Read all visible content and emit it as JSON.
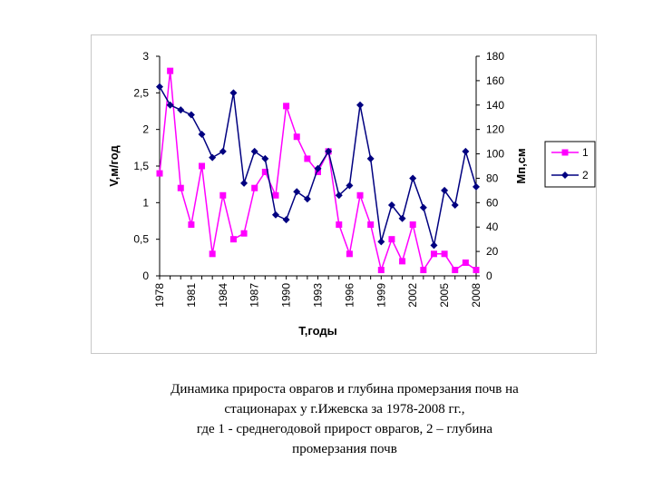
{
  "chart_data": {
    "type": "line",
    "x": [
      1978,
      1979,
      1980,
      1981,
      1982,
      1983,
      1984,
      1985,
      1986,
      1987,
      1988,
      1989,
      1990,
      1991,
      1992,
      1993,
      1994,
      1995,
      1996,
      1997,
      1998,
      1999,
      2000,
      2001,
      2002,
      2003,
      2004,
      2005,
      2006,
      2007,
      2008
    ],
    "x_tick_labels": [
      "1978",
      "1981",
      "1984",
      "1987",
      "1990",
      "1993",
      "1996",
      "1999",
      "2002",
      "2005",
      "2008"
    ],
    "x_tick_values": [
      1978,
      1981,
      1984,
      1987,
      1990,
      1993,
      1996,
      1999,
      2002,
      2005,
      2008
    ],
    "xlabel": "T,годы",
    "ylabel": "V,м/год",
    "ylabel_right": "Мп,см",
    "ylim": [
      0,
      3
    ],
    "ylim_right": [
      0,
      180
    ],
    "y_tick_labels": [
      "0",
      "0,5",
      "1",
      "1,5",
      "2",
      "2,5",
      "3"
    ],
    "y_tick_values": [
      0,
      0.5,
      1,
      1.5,
      2,
      2.5,
      3
    ],
    "y_right_tick_labels": [
      "0",
      "20",
      "40",
      "60",
      "80",
      "100",
      "120",
      "140",
      "160",
      "180"
    ],
    "y_right_tick_values": [
      0,
      20,
      40,
      60,
      80,
      100,
      120,
      140,
      160,
      180
    ],
    "legend_position": "right",
    "series": [
      {
        "name": "1",
        "axis": "left",
        "color": "#ff00ff",
        "marker": "square",
        "values": [
          1.4,
          2.8,
          1.2,
          0.7,
          1.5,
          0.3,
          1.1,
          0.5,
          0.58,
          1.2,
          1.42,
          1.1,
          2.32,
          1.9,
          1.6,
          1.42,
          1.7,
          0.7,
          0.3,
          1.1,
          0.7,
          0.08,
          0.5,
          0.2,
          0.7,
          0.08,
          0.3,
          0.3,
          0.08,
          0.18,
          0.08
        ]
      },
      {
        "name": "2",
        "axis": "right",
        "color": "#000080",
        "marker": "diamond",
        "values": [
          155,
          140,
          136,
          132,
          116,
          97,
          102,
          150,
          76,
          102,
          96,
          50,
          46,
          69,
          63,
          88,
          102,
          66,
          74,
          140,
          96,
          28,
          58,
          47,
          80,
          56,
          25,
          70,
          58,
          102,
          73
        ]
      }
    ]
  },
  "caption": {
    "line1": "Динамика прироста оврагов и глубина промерзания почв на",
    "line2": "стационарах у г.Ижевска за 1978-2008 гг.,",
    "line3": "где 1 - среднегодовой прирост оврагов, 2 – глубина",
    "line4": "промерзания почв"
  }
}
